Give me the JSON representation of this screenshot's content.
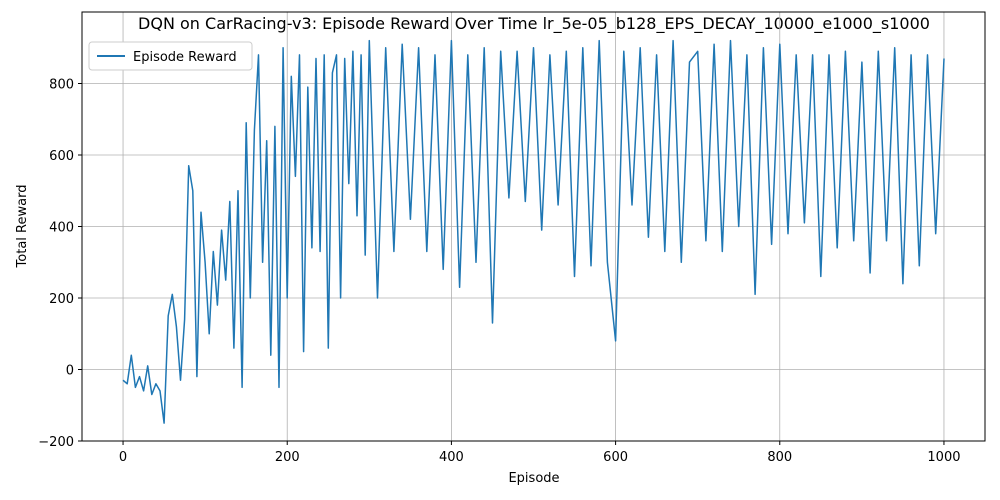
{
  "chart_data": {
    "type": "line",
    "title": "DQN on CarRacing-v3: Episode Reward Over Time lr_5e-05_b128_EPS_DECAY_10000_e1000_s1000",
    "xlabel": "Episode",
    "ylabel": "Total Reward",
    "xlim": [
      -50,
      1050
    ],
    "ylim": [
      -200,
      1000
    ],
    "xticks": [
      0,
      200,
      400,
      600,
      800,
      1000
    ],
    "yticks": [
      -200,
      0,
      200,
      400,
      600,
      800
    ],
    "grid": true,
    "legend_position": "top-left",
    "series": [
      {
        "name": "Episode Reward",
        "color": "#1f77b4",
        "x": [
          0,
          5,
          10,
          15,
          20,
          25,
          30,
          35,
          40,
          45,
          50,
          55,
          60,
          65,
          70,
          75,
          80,
          85,
          90,
          95,
          100,
          105,
          110,
          115,
          120,
          125,
          130,
          135,
          140,
          145,
          150,
          155,
          160,
          165,
          170,
          175,
          180,
          185,
          190,
          195,
          200,
          205,
          210,
          215,
          220,
          225,
          230,
          235,
          240,
          245,
          250,
          255,
          260,
          265,
          270,
          275,
          280,
          285,
          290,
          295,
          300,
          310,
          320,
          330,
          340,
          350,
          360,
          370,
          380,
          390,
          400,
          410,
          420,
          430,
          440,
          450,
          460,
          470,
          480,
          490,
          500,
          510,
          520,
          530,
          540,
          550,
          560,
          570,
          580,
          590,
          600,
          610,
          620,
          630,
          640,
          650,
          660,
          670,
          680,
          690,
          700,
          710,
          720,
          730,
          740,
          750,
          760,
          770,
          780,
          790,
          800,
          810,
          820,
          830,
          840,
          850,
          860,
          870,
          880,
          890,
          900,
          910,
          920,
          930,
          940,
          950,
          960,
          970,
          980,
          990,
          1000
        ],
        "y": [
          -30,
          -40,
          40,
          -50,
          -20,
          -60,
          10,
          -70,
          -40,
          -60,
          -150,
          150,
          210,
          120,
          -30,
          140,
          570,
          500,
          -20,
          440,
          300,
          100,
          330,
          180,
          390,
          250,
          470,
          60,
          500,
          -50,
          690,
          200,
          670,
          880,
          300,
          640,
          40,
          680,
          -50,
          900,
          200,
          820,
          540,
          880,
          50,
          790,
          340,
          870,
          330,
          880,
          60,
          830,
          880,
          200,
          870,
          520,
          890,
          430,
          880,
          320,
          920,
          200,
          900,
          330,
          910,
          420,
          900,
          330,
          880,
          280,
          920,
          230,
          880,
          300,
          900,
          130,
          890,
          480,
          890,
          470,
          900,
          390,
          880,
          460,
          890,
          260,
          900,
          290,
          920,
          300,
          80,
          890,
          460,
          900,
          370,
          880,
          330,
          920,
          300,
          860,
          890,
          360,
          910,
          330,
          920,
          400,
          880,
          210,
          900,
          350,
          910,
          380,
          880,
          410,
          880,
          260,
          880,
          340,
          890,
          360,
          860,
          270,
          890,
          360,
          900,
          240,
          880,
          290,
          880,
          380,
          870
        ]
      }
    ]
  }
}
